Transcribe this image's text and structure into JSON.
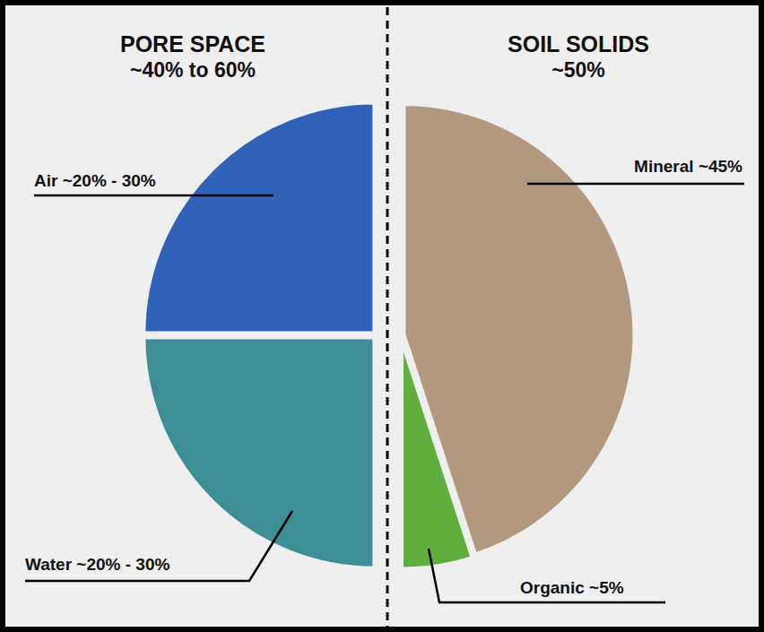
{
  "chart_data": {
    "type": "pie",
    "groups": [
      {
        "title": "PORE SPACE",
        "subtitle": "~40% to 60%"
      },
      {
        "title": "SOIL SOLIDS",
        "subtitle": "~50%"
      }
    ],
    "categories": [
      "Mineral ~45%",
      "Organic ~5%",
      "Water ~20% - 30%",
      "Air ~20% - 30%"
    ],
    "values": [
      45,
      5,
      25,
      25
    ],
    "colors": [
      "#b39880",
      "#5fae3e",
      "#3e8f95",
      "#2f62b8"
    ]
  }
}
